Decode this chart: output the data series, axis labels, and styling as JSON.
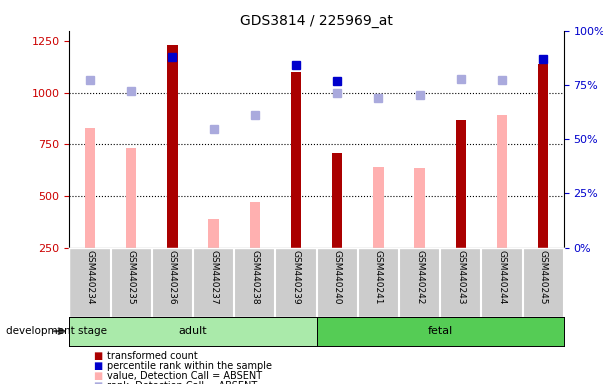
{
  "title": "GDS3814 / 225969_at",
  "samples": [
    "GSM440234",
    "GSM440235",
    "GSM440236",
    "GSM440237",
    "GSM440238",
    "GSM440239",
    "GSM440240",
    "GSM440241",
    "GSM440242",
    "GSM440243",
    "GSM440244",
    "GSM440245"
  ],
  "groups": [
    "adult",
    "adult",
    "adult",
    "adult",
    "adult",
    "adult",
    "fetal",
    "fetal",
    "fetal",
    "fetal",
    "fetal",
    "fetal"
  ],
  "transformed_count": [
    null,
    null,
    1230,
    null,
    null,
    1100,
    710,
    null,
    null,
    870,
    null,
    1140
  ],
  "percentile_rank": [
    null,
    null,
    88,
    null,
    null,
    84,
    77,
    null,
    null,
    null,
    null,
    87
  ],
  "value_absent": [
    830,
    730,
    null,
    390,
    470,
    null,
    null,
    640,
    635,
    null,
    890,
    null
  ],
  "rank_absent": [
    1060,
    1010,
    null,
    825,
    890,
    null,
    1000,
    975,
    990,
    1065,
    1060,
    null
  ],
  "ylim_left": [
    250,
    1300
  ],
  "ylim_right": [
    0,
    100
  ],
  "yticks_left": [
    250,
    500,
    750,
    1000,
    1250
  ],
  "yticks_right": [
    0,
    25,
    50,
    75,
    100
  ],
  "ytick_labels_right": [
    "0%",
    "25%",
    "50%",
    "75%",
    "100%"
  ],
  "grid_values": [
    500,
    750,
    1000
  ],
  "bar_width": 0.25,
  "color_red": "#AA0000",
  "color_blue": "#0000CC",
  "color_pink": "#FFB0B0",
  "color_lightblue": "#AAAADD",
  "adult_color": "#AAEAAA",
  "fetal_color": "#55CC55",
  "bg_label": "#CCCCCC",
  "legend_items": [
    [
      "transformed count",
      "#AA0000"
    ],
    [
      "percentile rank within the sample",
      "#0000CC"
    ],
    [
      "value, Detection Call = ABSENT",
      "#FFB0B0"
    ],
    [
      "rank, Detection Call = ABSENT",
      "#AAAADD"
    ]
  ]
}
